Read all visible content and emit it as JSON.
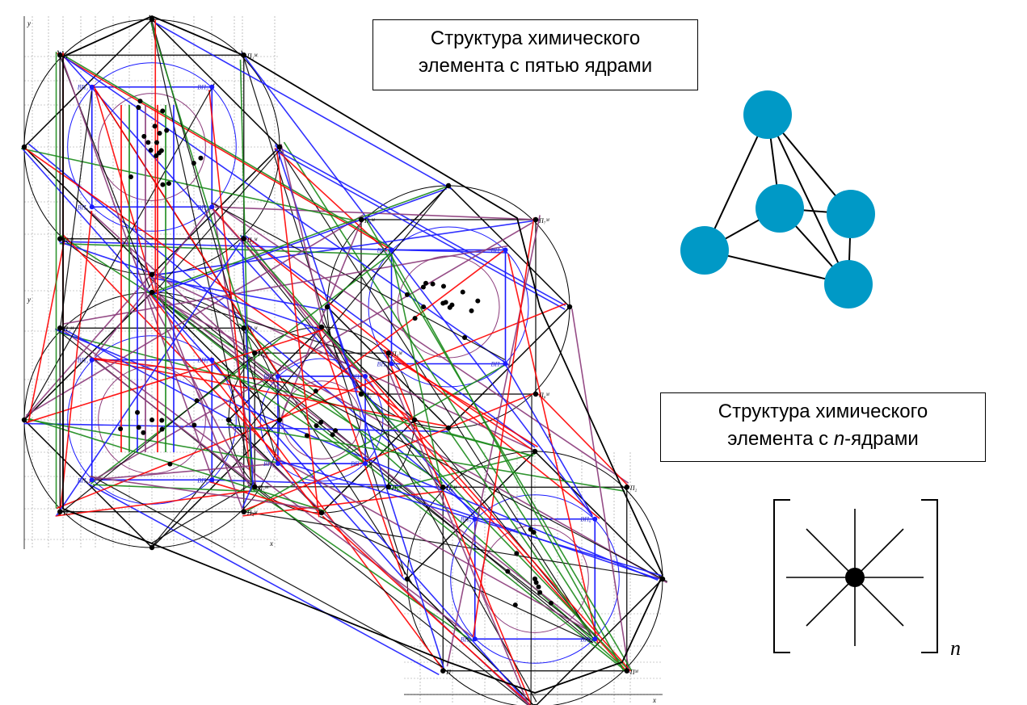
{
  "caption_five_nuclei": {
    "line1": "Структура химического",
    "line2": "элемента с пятью ядрами"
  },
  "caption_n_nuclei": {
    "line1": "Структура химического",
    "line2_prefix": "элемента с ",
    "line2_italic": "n",
    "line2_suffix": "-ядрами"
  },
  "bracket_subscript": "n",
  "axis_labels": {
    "y": "y",
    "x": "x"
  },
  "node_labels": {
    "outer": [
      "П",
      "П₁ᴹ",
      "П₂ᴹ",
      "П₃ᴹ",
      "П₄ᴹ",
      "П₅ᴹ",
      "П₆ᴹ",
      "П₇ᴹ",
      "П₈ᴹ",
      "П₂",
      "Пᴹ"
    ],
    "inner": [
      "ВП₁",
      "ВП₂",
      "ВП₃",
      "ВП₄",
      "ВП₅",
      "ВП₆",
      "ВП₇",
      "ВП₈"
    ]
  },
  "colors": {
    "node_fill": "#0099c6",
    "line_black": "#000000",
    "line_red": "#ff0000",
    "line_green": "#1a8a1a",
    "line_blue": "#1a1aff",
    "line_purple": "#8b3a7a",
    "label_blue": "#3333cc"
  }
}
